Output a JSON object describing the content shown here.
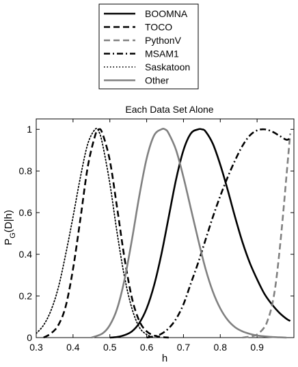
{
  "chart_data": {
    "type": "line",
    "title": "Each Data Set Alone",
    "xlabel": "h",
    "ylabel_main": "P",
    "ylabel_sub": "G",
    "ylabel_rest": "(D|h)",
    "xlim": [
      0.3,
      1.0
    ],
    "ylim": [
      0,
      1.05
    ],
    "xticks": [
      "0.3",
      "0.4",
      "0.5",
      "0.6",
      "0.7",
      "0.8",
      "0.9"
    ],
    "yticks": [
      "0",
      "0.2",
      "0.4",
      "0.6",
      "0.8",
      "1"
    ],
    "grid": false,
    "legend_position": "top-center",
    "series": [
      {
        "name": "BOOMNA",
        "color": "#000000",
        "dash": "solid",
        "x": [
          0.5,
          0.52,
          0.54,
          0.56,
          0.58,
          0.6,
          0.62,
          0.64,
          0.66,
          0.68,
          0.7,
          0.72,
          0.74,
          0.75,
          0.76,
          0.78,
          0.8,
          0.82,
          0.84,
          0.86,
          0.88,
          0.9,
          0.92,
          0.94,
          0.96,
          0.98,
          0.99
        ],
        "y": [
          0.0,
          0.003,
          0.012,
          0.03,
          0.07,
          0.14,
          0.25,
          0.4,
          0.58,
          0.76,
          0.9,
          0.98,
          1.0,
          1.0,
          0.99,
          0.93,
          0.83,
          0.71,
          0.58,
          0.46,
          0.36,
          0.28,
          0.21,
          0.16,
          0.12,
          0.09,
          0.08
        ]
      },
      {
        "name": "TOCO",
        "color": "#000000",
        "dash": "dashed",
        "x": [
          0.32,
          0.34,
          0.36,
          0.38,
          0.4,
          0.42,
          0.44,
          0.46,
          0.47,
          0.48,
          0.5,
          0.52,
          0.54,
          0.56,
          0.58,
          0.6,
          0.62,
          0.64,
          0.66
        ],
        "y": [
          0.0,
          0.02,
          0.06,
          0.15,
          0.33,
          0.57,
          0.82,
          0.97,
          1.0,
          0.98,
          0.85,
          0.62,
          0.38,
          0.19,
          0.08,
          0.03,
          0.01,
          0.003,
          0.0
        ]
      },
      {
        "name": "PythonV",
        "color": "#808080",
        "dash": "dashed",
        "x": [
          0.86,
          0.88,
          0.9,
          0.92,
          0.93,
          0.94,
          0.95,
          0.96,
          0.97,
          0.98,
          0.99
        ],
        "y": [
          0.0,
          0.005,
          0.015,
          0.05,
          0.09,
          0.15,
          0.25,
          0.4,
          0.58,
          0.78,
          0.98
        ]
      },
      {
        "name": "MSAM1",
        "color": "#000000",
        "dash": "dashdot",
        "x": [
          0.6,
          0.62,
          0.64,
          0.66,
          0.68,
          0.7,
          0.72,
          0.74,
          0.76,
          0.78,
          0.8,
          0.82,
          0.84,
          0.86,
          0.88,
          0.9,
          0.92,
          0.94,
          0.96,
          0.98,
          0.99
        ],
        "y": [
          0.0,
          0.006,
          0.018,
          0.045,
          0.09,
          0.16,
          0.26,
          0.36,
          0.47,
          0.58,
          0.68,
          0.77,
          0.85,
          0.92,
          0.97,
          0.995,
          1.0,
          0.99,
          0.97,
          0.95,
          0.96
        ]
      },
      {
        "name": "Saskatoon",
        "color": "#000000",
        "dash": "dotted",
        "x": [
          0.3,
          0.32,
          0.34,
          0.36,
          0.38,
          0.4,
          0.42,
          0.44,
          0.46,
          0.47,
          0.48,
          0.5,
          0.52,
          0.54,
          0.56,
          0.58,
          0.6,
          0.62
        ],
        "y": [
          0.02,
          0.06,
          0.13,
          0.24,
          0.4,
          0.58,
          0.77,
          0.93,
          1.0,
          0.99,
          0.93,
          0.74,
          0.5,
          0.29,
          0.14,
          0.05,
          0.015,
          0.0
        ]
      },
      {
        "name": "Other",
        "color": "#808080",
        "dash": "solid",
        "x": [
          0.45,
          0.48,
          0.5,
          0.52,
          0.54,
          0.56,
          0.58,
          0.6,
          0.62,
          0.64,
          0.65,
          0.66,
          0.68,
          0.7,
          0.72,
          0.74,
          0.76,
          0.78,
          0.8,
          0.82,
          0.84,
          0.86,
          0.88,
          0.9,
          0.92,
          0.94,
          0.96,
          0.98
        ],
        "y": [
          0.0,
          0.02,
          0.06,
          0.14,
          0.28,
          0.47,
          0.68,
          0.86,
          0.97,
          1.0,
          1.0,
          0.98,
          0.9,
          0.77,
          0.62,
          0.47,
          0.33,
          0.22,
          0.14,
          0.085,
          0.05,
          0.03,
          0.018,
          0.01,
          0.006,
          0.003,
          0.0015,
          0.0
        ]
      }
    ]
  }
}
